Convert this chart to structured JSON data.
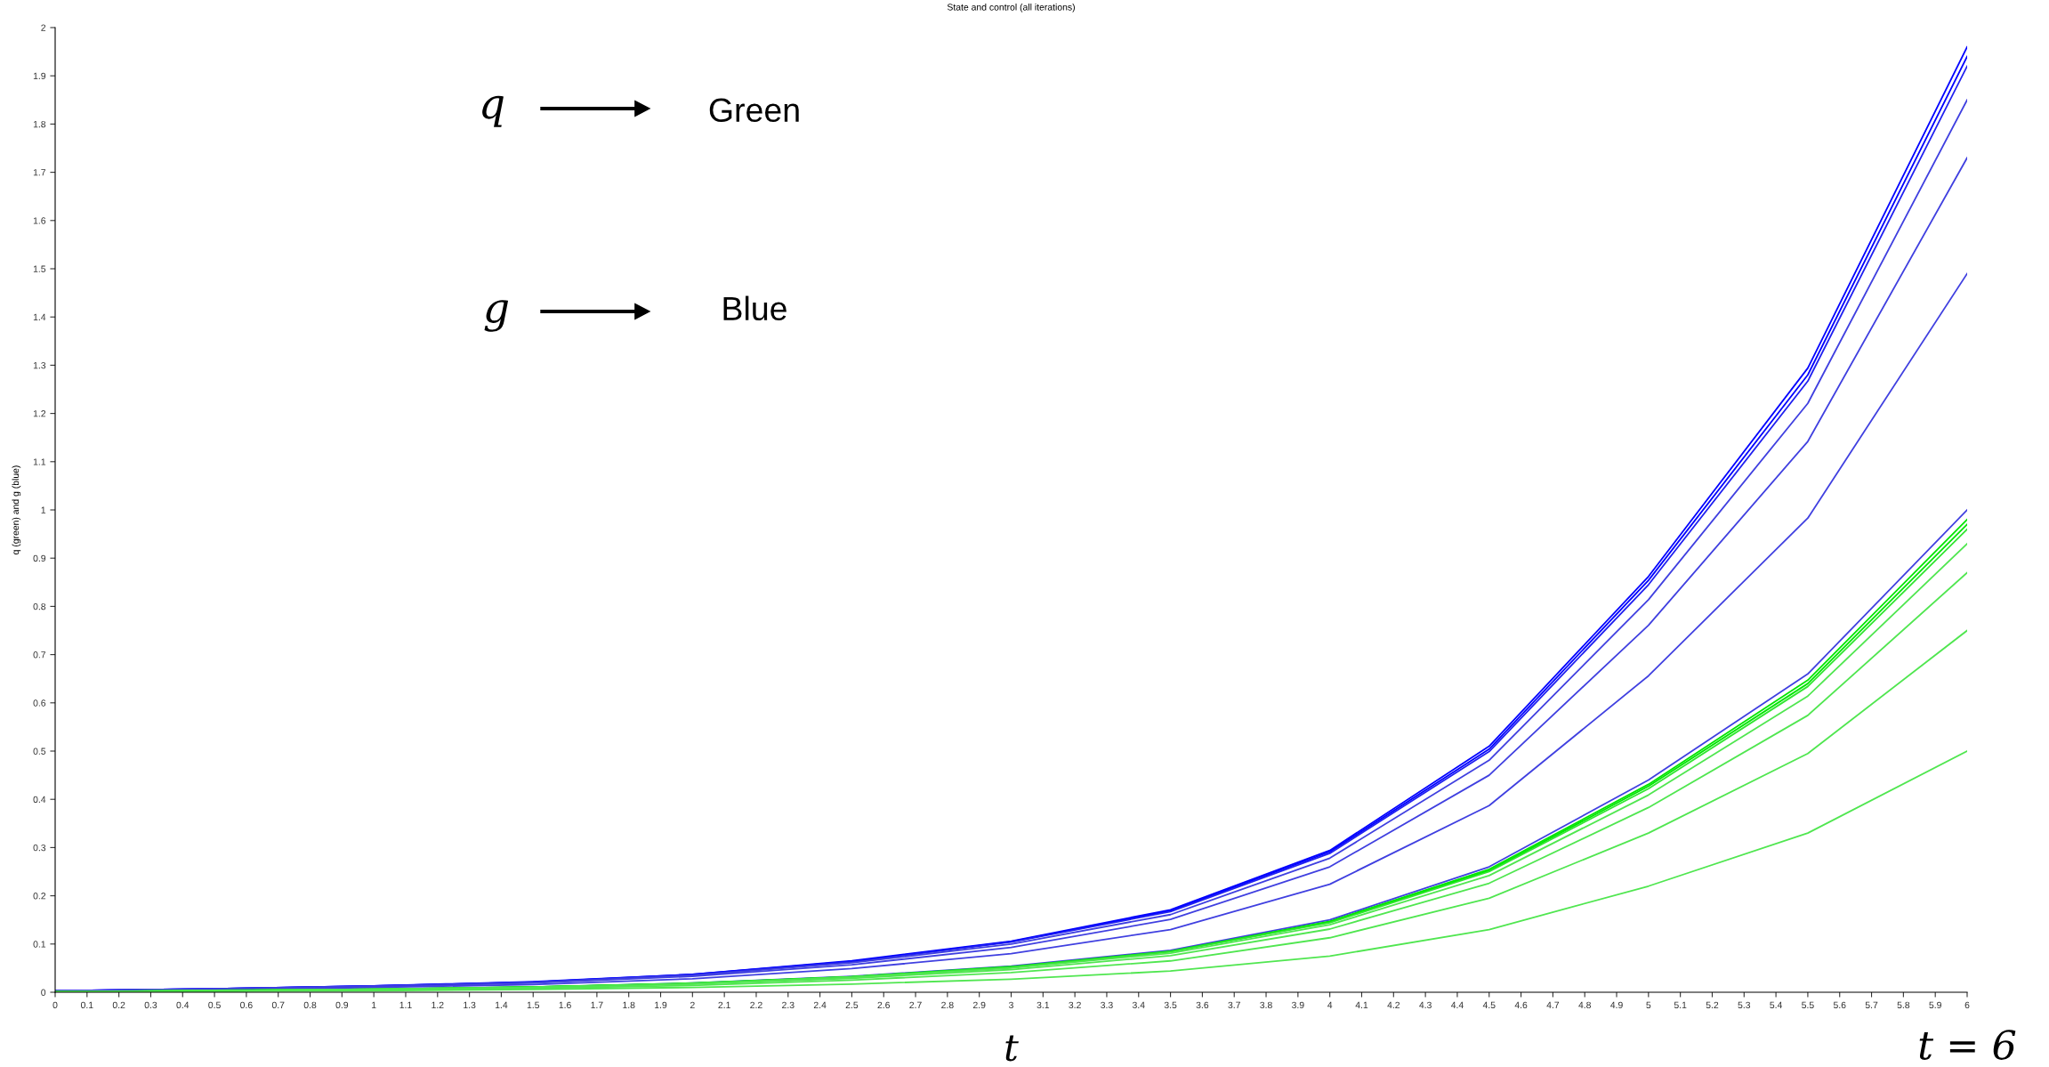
{
  "chart_data": {
    "type": "line",
    "title": "State and control (all iterations)",
    "ylabel": "q (green) and g (blue)",
    "xlabel": "t",
    "annotations": [
      "q",
      "Green",
      "g",
      "Blue",
      "t = 6"
    ],
    "x": [
      0,
      0.5,
      1,
      1.5,
      2,
      2.5,
      3,
      3.5,
      4,
      4.5,
      5,
      5.5,
      6
    ],
    "series": [
      {
        "color": "#0000ff",
        "values": [
          0.003,
          0.007,
          0.013,
          0.022,
          0.037,
          0.065,
          0.106,
          0.171,
          0.294,
          0.51,
          0.862,
          1.294,
          1.96
        ]
      },
      {
        "color": "#0000ff",
        "values": [
          0.003,
          0.007,
          0.013,
          0.021,
          0.037,
          0.064,
          0.105,
          0.169,
          0.291,
          0.504,
          0.854,
          1.28,
          1.94
        ]
      },
      {
        "color": "#2020f0",
        "values": [
          0.003,
          0.007,
          0.013,
          0.021,
          0.036,
          0.063,
          0.104,
          0.167,
          0.288,
          0.499,
          0.845,
          1.267,
          1.92
        ]
      },
      {
        "color": "#4040e0",
        "values": [
          0.003,
          0.007,
          0.012,
          0.02,
          0.035,
          0.061,
          0.1,
          0.161,
          0.278,
          0.481,
          0.814,
          1.221,
          1.85
        ]
      },
      {
        "color": "#4040e0",
        "values": [
          0.003,
          0.006,
          0.011,
          0.019,
          0.033,
          0.057,
          0.093,
          0.151,
          0.26,
          0.45,
          0.761,
          1.142,
          1.73
        ]
      },
      {
        "color": "#4040e0",
        "values": [
          0.002,
          0.005,
          0.01,
          0.016,
          0.028,
          0.049,
          0.08,
          0.13,
          0.224,
          0.387,
          0.656,
          0.983,
          1.49
        ]
      },
      {
        "color": "#4040e0",
        "values": [
          0.002,
          0.004,
          0.007,
          0.011,
          0.019,
          0.033,
          0.054,
          0.087,
          0.15,
          0.26,
          0.44,
          0.66,
          1.0
        ]
      },
      {
        "color": "#00e600",
        "values": [
          0.001,
          0.004,
          0.006,
          0.011,
          0.019,
          0.032,
          0.053,
          0.085,
          0.147,
          0.255,
          0.431,
          0.647,
          0.98
        ]
      },
      {
        "color": "#00e600",
        "values": [
          0.001,
          0.003,
          0.006,
          0.011,
          0.018,
          0.032,
          0.052,
          0.084,
          0.146,
          0.252,
          0.427,
          0.64,
          0.97
        ]
      },
      {
        "color": "#30e630",
        "values": [
          0.001,
          0.003,
          0.006,
          0.011,
          0.018,
          0.032,
          0.052,
          0.084,
          0.144,
          0.25,
          0.422,
          0.634,
          0.96
        ]
      },
      {
        "color": "#50e650",
        "values": [
          0.001,
          0.003,
          0.006,
          0.01,
          0.018,
          0.031,
          0.05,
          0.081,
          0.14,
          0.242,
          0.409,
          0.614,
          0.93
        ]
      },
      {
        "color": "#50e650",
        "values": [
          0.001,
          0.003,
          0.006,
          0.01,
          0.017,
          0.029,
          0.047,
          0.076,
          0.131,
          0.226,
          0.383,
          0.574,
          0.87
        ]
      },
      {
        "color": "#50e650",
        "values": [
          0.001,
          0.003,
          0.005,
          0.008,
          0.014,
          0.025,
          0.041,
          0.065,
          0.113,
          0.195,
          0.33,
          0.495,
          0.75
        ]
      },
      {
        "color": "#50e650",
        "values": [
          0.001,
          0.002,
          0.003,
          0.006,
          0.01,
          0.017,
          0.027,
          0.044,
          0.075,
          0.13,
          0.22,
          0.33,
          0.5
        ]
      }
    ],
    "xlim": [
      0,
      6
    ],
    "ylim": [
      0,
      2
    ],
    "xticks": [
      0,
      0.1,
      0.2,
      0.3,
      0.4,
      0.5,
      0.6,
      0.7,
      0.8,
      0.9,
      1,
      1.1,
      1.2,
      1.3,
      1.4,
      1.5,
      1.6,
      1.7,
      1.8,
      1.9,
      2,
      2.1,
      2.2,
      2.3,
      2.4,
      2.5,
      2.6,
      2.7,
      2.8,
      2.9,
      3,
      3.1,
      3.2,
      3.3,
      3.4,
      3.5,
      3.6,
      3.7,
      3.8,
      3.9,
      4,
      4.1,
      4.2,
      4.3,
      4.4,
      4.5,
      4.6,
      4.7,
      4.8,
      4.9,
      5,
      5.1,
      5.2,
      5.3,
      5.4,
      5.5,
      5.6,
      5.7,
      5.8,
      5.9,
      6
    ],
    "yticks": [
      0,
      0.1,
      0.2,
      0.3,
      0.4,
      0.5,
      0.6,
      0.7,
      0.8,
      0.9,
      1,
      1.1,
      1.2,
      1.3,
      1.4,
      1.5,
      1.6,
      1.7,
      1.8,
      1.9,
      2
    ],
    "grid": false,
    "legend": false,
    "marker": "none",
    "line_style": "solid"
  }
}
